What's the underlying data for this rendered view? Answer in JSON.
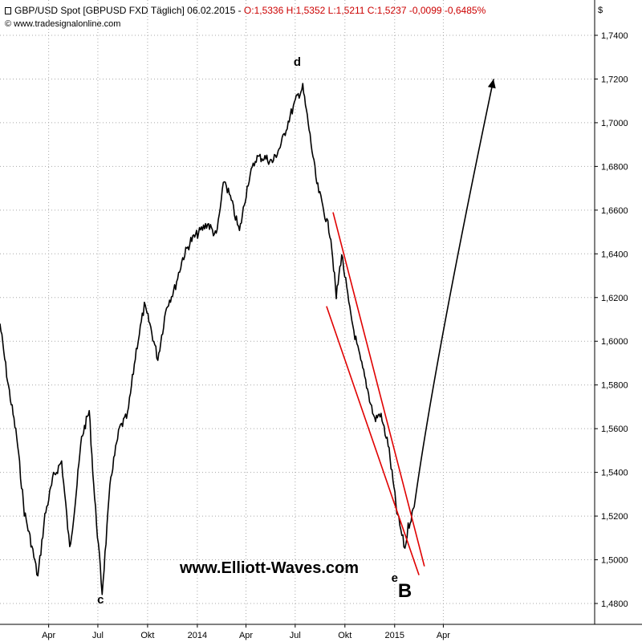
{
  "header": {
    "title": "GBP/USD Spot [GBPUSD FXD  Täglich] 06.02.2015 - ",
    "ohlc": "O:1,5336 H:1,5352 L:1,5211 C:1,5237 -0,0099 -0,6485%",
    "source": "© www.tradesignalonline.com"
  },
  "chart_data": {
    "type": "line",
    "currency_label": "$",
    "ylim": [
      1.475,
      1.755
    ],
    "y_ticks": [
      "1,4800",
      "1,5000",
      "1,5200",
      "1,5400",
      "1,5600",
      "1,5800",
      "1,6000",
      "1,6200",
      "1,6400",
      "1,6600",
      "1,6800",
      "1,7000",
      "1,7200",
      "1,7400"
    ],
    "x_ticks": [
      "Apr",
      "Jul",
      "Okt",
      "2014",
      "Apr",
      "Jul",
      "Okt",
      "2015",
      "Apr"
    ],
    "series": [
      {
        "x": [
          "2013-01-01",
          "2013-01-15",
          "2013-02-01",
          "2013-02-15",
          "2013-03-01",
          "2013-03-12",
          "2013-03-25",
          "2013-04-10",
          "2013-04-25",
          "2013-05-10",
          "2013-05-20",
          "2013-06-01",
          "2013-06-15",
          "2013-06-25",
          "2013-07-09",
          "2013-07-25",
          "2013-08-10",
          "2013-08-25",
          "2013-09-10",
          "2013-09-25",
          "2013-10-05",
          "2013-10-20",
          "2013-11-05",
          "2013-11-20",
          "2013-12-05",
          "2013-12-20",
          "2014-01-05",
          "2014-01-20",
          "2014-02-05",
          "2014-02-20",
          "2014-03-05",
          "2014-03-20",
          "2014-04-05",
          "2014-04-20",
          "2014-05-06",
          "2014-05-20",
          "2014-06-05",
          "2014-06-20",
          "2014-07-05",
          "2014-07-15",
          "2014-07-25",
          "2014-08-10",
          "2014-08-25",
          "2014-09-05",
          "2014-09-15",
          "2014-09-25",
          "2014-10-10",
          "2014-10-25",
          "2014-11-10",
          "2014-11-25",
          "2014-12-05",
          "2014-12-20",
          "2015-01-05",
          "2015-01-20",
          "2015-01-26",
          "2015-02-06"
        ],
        "values": [
          1.608,
          1.582,
          1.556,
          1.522,
          1.506,
          1.492,
          1.52,
          1.538,
          1.545,
          1.505,
          1.526,
          1.556,
          1.568,
          1.528,
          1.485,
          1.538,
          1.56,
          1.566,
          1.596,
          1.616,
          1.608,
          1.592,
          1.616,
          1.624,
          1.638,
          1.646,
          1.65,
          1.654,
          1.648,
          1.674,
          1.664,
          1.65,
          1.673,
          1.684,
          1.684,
          1.682,
          1.69,
          1.702,
          1.712,
          1.716,
          1.7,
          1.672,
          1.658,
          1.648,
          1.62,
          1.64,
          1.614,
          1.596,
          1.58,
          1.564,
          1.567,
          1.553,
          1.522,
          1.505,
          1.515,
          1.524
        ]
      }
    ],
    "channel": [
      {
        "x1": "2014-09-09",
        "y1": 1.659,
        "x2": "2015-02-25",
        "y2": 1.497
      },
      {
        "x1": "2014-08-28",
        "y1": 1.616,
        "x2": "2015-02-15",
        "y2": 1.493
      }
    ],
    "projection": {
      "x1": "2015-02-06",
      "y1": 1.524,
      "x2": "2015-07-03",
      "y2": 1.72
    },
    "annotations": [
      {
        "text": "c",
        "x": "2013-07-06",
        "y": 1.48
      },
      {
        "text": "d",
        "x": "2014-07-05",
        "y": 1.726
      },
      {
        "text": "e",
        "x": "2015-01-01",
        "y": 1.49
      },
      {
        "text": "B",
        "x": "2015-01-20",
        "y": 1.483
      }
    ],
    "watermark": "www.Elliott-Waves.com",
    "grid": true
  }
}
